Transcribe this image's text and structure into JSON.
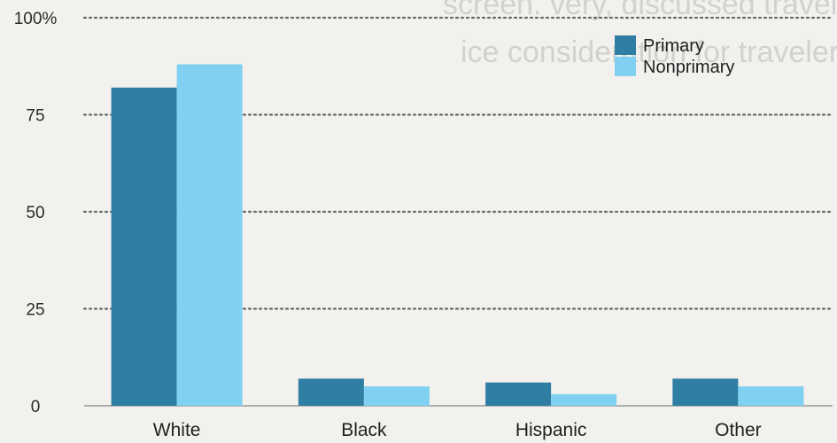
{
  "chart_data": {
    "type": "bar",
    "categories": [
      "White",
      "Black",
      "Hispanic",
      "Other"
    ],
    "series": [
      {
        "name": "Primary",
        "values": [
          82,
          7,
          6,
          7
        ]
      },
      {
        "name": "Nonprimary",
        "values": [
          88,
          5,
          3,
          5
        ]
      }
    ],
    "ylim": [
      0,
      100
    ],
    "yticks": [
      "0",
      "25",
      "50",
      "75",
      "100%"
    ],
    "ytick_values": [
      0,
      25,
      50,
      75,
      100
    ],
    "grid": true,
    "legend_position": "top-right",
    "colors": {
      "Primary": "#2f7ea3",
      "Nonprimary": "#7fd0f1"
    }
  },
  "background_text": {
    "heading_line_1": "screen. very, discussed traveler",
    "heading_line_2": "ice consideration for travelers' accommodation"
  }
}
